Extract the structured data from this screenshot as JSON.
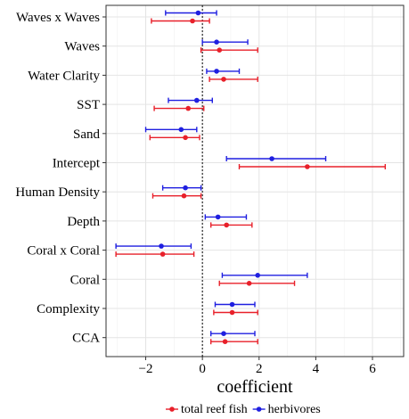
{
  "chart_data": {
    "type": "scatter",
    "subtype": "coefficient-interval",
    "title": "",
    "xlabel": "coefficient",
    "ylabel": "",
    "xlim": [
      -3.4,
      7.1
    ],
    "x_ticks": [
      -2,
      0,
      2,
      4,
      6
    ],
    "x_tick_labels": [
      "−2",
      "0",
      "2",
      "4",
      "6"
    ],
    "reference_line": 0,
    "grid": true,
    "legend_position": "bottom",
    "categories": [
      "Waves x Waves",
      "Waves",
      "Water Clarity",
      "SST",
      "Sand",
      "Intercept",
      "Human Density",
      "Depth",
      "Coral x Coral",
      "Coral",
      "Complexity",
      "CCA"
    ],
    "series": [
      {
        "name": "total reef fish",
        "color": "#e8202a",
        "values": [
          -0.35,
          0.6,
          0.75,
          -0.5,
          -0.6,
          3.7,
          -0.65,
          0.85,
          -1.4,
          1.65,
          1.05,
          0.8
        ],
        "lower": [
          -1.8,
          -0.05,
          0.25,
          -1.7,
          -1.85,
          1.3,
          -1.75,
          0.3,
          -3.05,
          0.6,
          0.4,
          0.3
        ],
        "upper": [
          0.25,
          1.95,
          1.95,
          0.05,
          -0.1,
          6.45,
          -0.05,
          1.75,
          -0.3,
          3.25,
          1.95,
          1.95
        ]
      },
      {
        "name": "herbivores",
        "color": "#1f1fe0",
        "values": [
          -0.15,
          0.5,
          0.5,
          -0.2,
          -0.75,
          2.45,
          -0.6,
          0.55,
          -1.45,
          1.95,
          1.05,
          0.75
        ],
        "lower": [
          -1.3,
          0.0,
          0.15,
          -1.2,
          -2.0,
          0.85,
          -1.4,
          0.1,
          -3.05,
          0.7,
          0.45,
          0.3
        ],
        "upper": [
          0.5,
          1.6,
          1.3,
          0.35,
          -0.2,
          4.35,
          -0.05,
          1.55,
          -0.4,
          3.7,
          1.85,
          1.85
        ]
      }
    ]
  }
}
